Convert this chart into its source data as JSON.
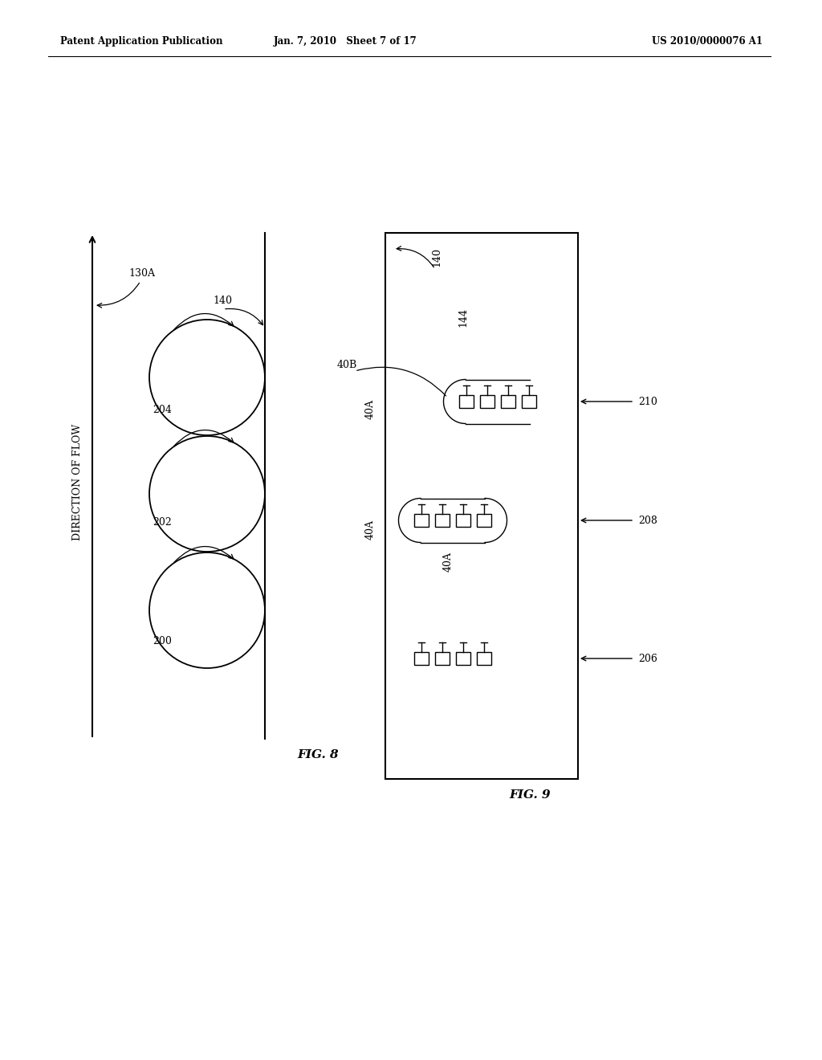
{
  "bg_color": "#ffffff",
  "header_left": "Patent Application Publication",
  "header_center": "Jan. 7, 2010   Sheet 7 of 17",
  "header_right": "US 2010/0000076 A1",
  "fig8_label": "FIG. 8",
  "fig9_label": "FIG. 9"
}
